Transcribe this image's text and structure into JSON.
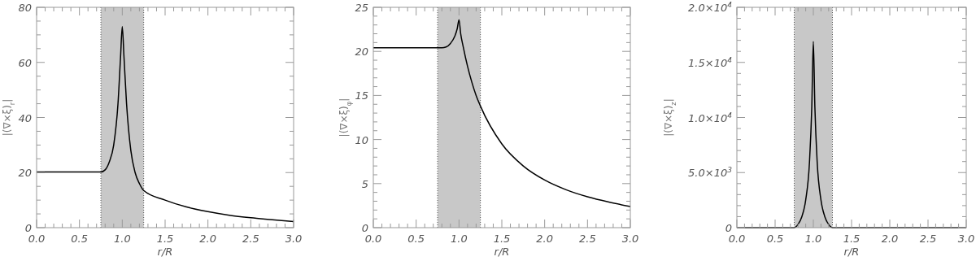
{
  "chart_data": [
    {
      "type": "line",
      "xlabel": "r/R",
      "ylabel": "|(∇×ξ)$_{r}$|",
      "x": [
        0,
        0.25,
        0.5,
        0.75,
        0.8,
        0.85,
        0.9,
        0.95,
        0.98,
        1.0,
        1.02,
        1.05,
        1.1,
        1.15,
        1.2,
        1.25,
        1.5,
        1.75,
        2.0,
        2.25,
        2.5,
        2.75,
        3.0
      ],
      "ref_lines": [
        {
          "axis": "x",
          "value": 0.75,
          "color": "#555555",
          "line_style": "dotted"
        },
        {
          "axis": "x",
          "value": 1.25,
          "color": "#555555",
          "line_style": "dotted"
        }
      ],
      "series": [
        {
          "color": "#000000",
          "values": [
            20.2,
            20.2,
            20.2,
            20.2,
            21,
            24,
            30,
            45,
            62,
            73,
            62,
            45,
            28,
            20,
            16,
            13.5,
            10,
            7.5,
            5.8,
            4.5,
            3.6,
            2.9,
            2.2
          ]
        }
      ],
      "bands": [
        {
          "axis": "x",
          "from": 0.75,
          "to": 1.25,
          "color": "#c8c8c8"
        }
      ],
      "xlim": [
        0,
        3
      ],
      "ylim": [
        0,
        80
      ],
      "xticks": [
        {
          "value": 0,
          "label": "0.0"
        },
        {
          "value": 0.1,
          "label": null
        },
        {
          "value": 0.2,
          "label": null
        },
        {
          "value": 0.3,
          "label": null
        },
        {
          "value": 0.4,
          "label": null
        },
        {
          "value": 0.5,
          "label": "0.5"
        },
        {
          "value": 0.6,
          "label": null
        },
        {
          "value": 0.7,
          "label": null
        },
        {
          "value": 0.8,
          "label": null
        },
        {
          "value": 0.9,
          "label": null
        },
        {
          "value": 1,
          "label": "1.0"
        },
        {
          "value": 1.1,
          "label": null
        },
        {
          "value": 1.2,
          "label": null
        },
        {
          "value": 1.3,
          "label": null
        },
        {
          "value": 1.4,
          "label": null
        },
        {
          "value": 1.5,
          "label": "1.5"
        },
        {
          "value": 1.6,
          "label": null
        },
        {
          "value": 1.7,
          "label": null
        },
        {
          "value": 1.8,
          "label": null
        },
        {
          "value": 1.9,
          "label": null
        },
        {
          "value": 2,
          "label": "2.0"
        },
        {
          "value": 2.1,
          "label": null
        },
        {
          "value": 2.2,
          "label": null
        },
        {
          "value": 2.3,
          "label": null
        },
        {
          "value": 2.4,
          "label": null
        },
        {
          "value": 2.5,
          "label": "2.5"
        },
        {
          "value": 2.6,
          "label": null
        },
        {
          "value": 2.7,
          "label": null
        },
        {
          "value": 2.8,
          "label": null
        },
        {
          "value": 2.9,
          "label": null
        },
        {
          "value": 3,
          "label": "3.0"
        }
      ],
      "yticks": [
        0,
        {
          "value": 5,
          "label": null
        },
        {
          "value": 10,
          "label": null
        },
        {
          "value": 15,
          "label": null
        },
        20,
        {
          "value": 25,
          "label": null
        },
        {
          "value": 30,
          "label": null
        },
        {
          "value": 35,
          "label": null
        },
        40,
        {
          "value": 45,
          "label": null
        },
        {
          "value": 50,
          "label": null
        },
        {
          "value": 55,
          "label": null
        },
        60,
        {
          "value": 65,
          "label": null
        },
        {
          "value": 70,
          "label": null
        },
        {
          "value": 75,
          "label": null
        },
        80
      ]
    },
    {
      "type": "line",
      "xlabel": "r/R",
      "ylabel": "|(∇×ξ)$_{φ}$|",
      "x": [
        0,
        0.25,
        0.5,
        0.75,
        0.8,
        0.85,
        0.9,
        0.95,
        0.98,
        1.0,
        1.02,
        1.05,
        1.1,
        1.15,
        1.2,
        1.25,
        1.5,
        1.75,
        2.0,
        2.25,
        2.5,
        2.75,
        3.0
      ],
      "ref_lines": [
        {
          "axis": "x",
          "value": 0.75,
          "color": "#555555",
          "line_style": "dotted"
        },
        {
          "axis": "x",
          "value": 1.25,
          "color": "#555555",
          "line_style": "dotted"
        }
      ],
      "series": [
        {
          "color": "#000000",
          "values": [
            20.4,
            20.4,
            20.4,
            20.4,
            20.4,
            20.5,
            20.9,
            21.7,
            22.6,
            23.6,
            22.0,
            20.5,
            18.3,
            16.5,
            15.0,
            13.8,
            9.5,
            7.0,
            5.4,
            4.3,
            3.5,
            2.9,
            2.4
          ]
        }
      ],
      "bands": [
        {
          "axis": "x",
          "from": 0.75,
          "to": 1.25,
          "color": "#c8c8c8"
        }
      ],
      "xlim": [
        0,
        3
      ],
      "ylim": [
        0,
        25
      ],
      "xticks": [
        {
          "value": 0,
          "label": "0.0"
        },
        {
          "value": 0.1,
          "label": null
        },
        {
          "value": 0.2,
          "label": null
        },
        {
          "value": 0.3,
          "label": null
        },
        {
          "value": 0.4,
          "label": null
        },
        {
          "value": 0.5,
          "label": "0.5"
        },
        {
          "value": 0.6,
          "label": null
        },
        {
          "value": 0.7,
          "label": null
        },
        {
          "value": 0.8,
          "label": null
        },
        {
          "value": 0.9,
          "label": null
        },
        {
          "value": 1,
          "label": "1.0"
        },
        {
          "value": 1.1,
          "label": null
        },
        {
          "value": 1.2,
          "label": null
        },
        {
          "value": 1.3,
          "label": null
        },
        {
          "value": 1.4,
          "label": null
        },
        {
          "value": 1.5,
          "label": "1.5"
        },
        {
          "value": 1.6,
          "label": null
        },
        {
          "value": 1.7,
          "label": null
        },
        {
          "value": 1.8,
          "label": null
        },
        {
          "value": 1.9,
          "label": null
        },
        {
          "value": 2,
          "label": "2.0"
        },
        {
          "value": 2.1,
          "label": null
        },
        {
          "value": 2.2,
          "label": null
        },
        {
          "value": 2.3,
          "label": null
        },
        {
          "value": 2.4,
          "label": null
        },
        {
          "value": 2.5,
          "label": "2.5"
        },
        {
          "value": 2.6,
          "label": null
        },
        {
          "value": 2.7,
          "label": null
        },
        {
          "value": 2.8,
          "label": null
        },
        {
          "value": 2.9,
          "label": null
        },
        {
          "value": 3,
          "label": "3.0"
        }
      ],
      "yticks": [
        0,
        {
          "value": 1,
          "label": null
        },
        {
          "value": 2,
          "label": null
        },
        {
          "value": 3,
          "label": null
        },
        {
          "value": 4,
          "label": null
        },
        5,
        {
          "value": 6,
          "label": null
        },
        {
          "value": 7,
          "label": null
        },
        {
          "value": 8,
          "label": null
        },
        {
          "value": 9,
          "label": null
        },
        10,
        {
          "value": 11,
          "label": null
        },
        {
          "value": 12,
          "label": null
        },
        {
          "value": 13,
          "label": null
        },
        {
          "value": 14,
          "label": null
        },
        15,
        {
          "value": 16,
          "label": null
        },
        {
          "value": 17,
          "label": null
        },
        {
          "value": 18,
          "label": null
        },
        {
          "value": 19,
          "label": null
        },
        20,
        {
          "value": 21,
          "label": null
        },
        {
          "value": 22,
          "label": null
        },
        {
          "value": 23,
          "label": null
        },
        {
          "value": 24,
          "label": null
        },
        25
      ]
    },
    {
      "type": "line",
      "xlabel": "r/R",
      "ylabel": "|(∇×ξ)$_{z}$|",
      "x": [
        0,
        0.25,
        0.5,
        0.75,
        0.8,
        0.85,
        0.9,
        0.95,
        0.98,
        1.0,
        1.02,
        1.05,
        1.1,
        1.15,
        1.2,
        1.25,
        1.5,
        2.0,
        2.5,
        3.0
      ],
      "ref_lines": [
        {
          "axis": "x",
          "value": 0.75,
          "color": "#555555",
          "line_style": "dotted"
        },
        {
          "axis": "x",
          "value": 1.25,
          "color": "#555555",
          "line_style": "dotted"
        }
      ],
      "series": [
        {
          "color": "#000000",
          "values": [
            0,
            0,
            0,
            0,
            300,
            1000,
            2500,
            6000,
            11000,
            16900,
            11000,
            6000,
            2500,
            1000,
            300,
            0,
            0,
            0,
            0,
            0
          ]
        }
      ],
      "bands": [
        {
          "axis": "x",
          "from": 0.75,
          "to": 1.25,
          "color": "#c8c8c8"
        }
      ],
      "xlim": [
        0,
        3
      ],
      "ylim": [
        0,
        20000
      ],
      "xticks": [
        {
          "value": 0,
          "label": "0.0"
        },
        {
          "value": 0.1,
          "label": null
        },
        {
          "value": 0.2,
          "label": null
        },
        {
          "value": 0.3,
          "label": null
        },
        {
          "value": 0.4,
          "label": null
        },
        {
          "value": 0.5,
          "label": "0.5"
        },
        {
          "value": 0.6,
          "label": null
        },
        {
          "value": 0.7,
          "label": null
        },
        {
          "value": 0.8,
          "label": null
        },
        {
          "value": 0.9,
          "label": null
        },
        {
          "value": 1,
          "label": "1.0"
        },
        {
          "value": 1.1,
          "label": null
        },
        {
          "value": 1.2,
          "label": null
        },
        {
          "value": 1.3,
          "label": null
        },
        {
          "value": 1.4,
          "label": null
        },
        {
          "value": 1.5,
          "label": "1.5"
        },
        {
          "value": 1.6,
          "label": null
        },
        {
          "value": 1.7,
          "label": null
        },
        {
          "value": 1.8,
          "label": null
        },
        {
          "value": 1.9,
          "label": null
        },
        {
          "value": 2,
          "label": "2.0"
        },
        {
          "value": 2.1,
          "label": null
        },
        {
          "value": 2.2,
          "label": null
        },
        {
          "value": 2.3,
          "label": null
        },
        {
          "value": 2.4,
          "label": null
        },
        {
          "value": 2.5,
          "label": "2.5"
        },
        {
          "value": 2.6,
          "label": null
        },
        {
          "value": 2.7,
          "label": null
        },
        {
          "value": 2.8,
          "label": null
        },
        {
          "value": 2.9,
          "label": null
        },
        {
          "value": 3,
          "label": "3.0"
        }
      ],
      "yticks": [
        0,
        {
          "value": 1000,
          "label": null
        },
        {
          "value": 2000,
          "label": null
        },
        {
          "value": 3000,
          "label": null
        },
        {
          "value": 4000,
          "label": null
        },
        {
          "value": 5000,
          "label": "5.0×10$^{3}$"
        },
        {
          "value": 6000,
          "label": null
        },
        {
          "value": 7000,
          "label": null
        },
        {
          "value": 8000,
          "label": null
        },
        {
          "value": 9000,
          "label": null
        },
        {
          "value": 10000,
          "label": "1.0×10$^{4}$"
        },
        {
          "value": 11000,
          "label": null
        },
        {
          "value": 12000,
          "label": null
        },
        {
          "value": 13000,
          "label": null
        },
        {
          "value": 14000,
          "label": null
        },
        {
          "value": 15000,
          "label": "1.5×10$^{4}$"
        },
        {
          "value": 16000,
          "label": null
        },
        {
          "value": 17000,
          "label": null
        },
        {
          "value": 18000,
          "label": null
        },
        {
          "value": 19000,
          "label": null
        },
        {
          "value": 20000,
          "label": "2.0×10$^{4}$"
        }
      ]
    }
  ]
}
